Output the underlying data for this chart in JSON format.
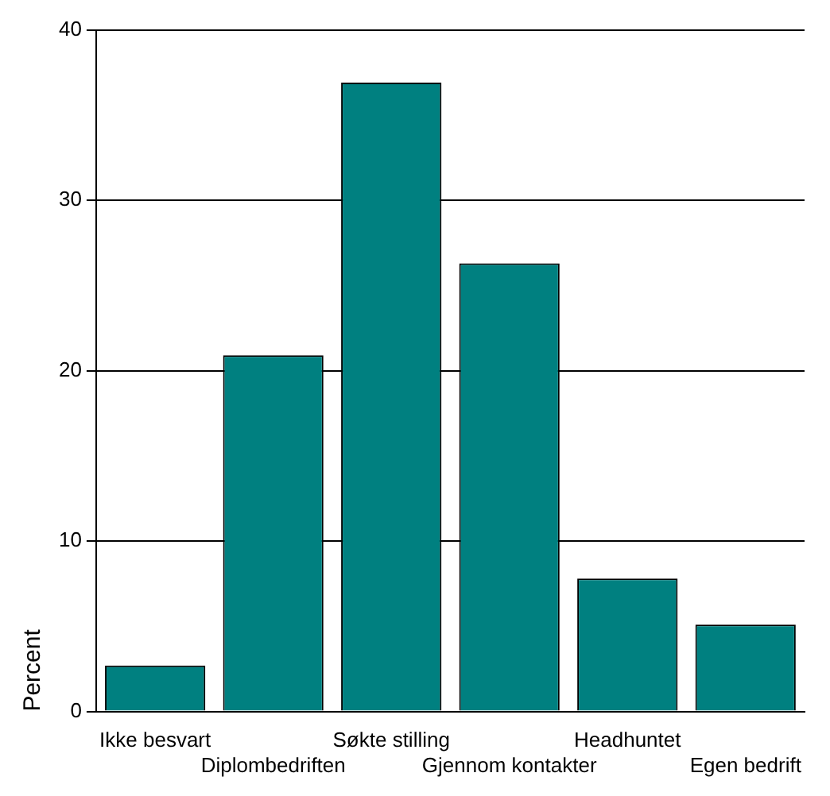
{
  "chart_data": {
    "type": "bar",
    "ylabel": "Percent",
    "categories": [
      "Ikke besvart",
      "Diplombedriften",
      "Søkte stilling",
      "Gjennom kontakter",
      "Headhuntet",
      "Egen bedrift"
    ],
    "values": [
      2.7,
      20.9,
      36.9,
      26.3,
      7.8,
      5.1
    ],
    "color": "#008080",
    "ylim": [
      0,
      40
    ],
    "yticks": [
      0,
      10,
      20,
      30,
      40
    ],
    "grid": "y"
  }
}
